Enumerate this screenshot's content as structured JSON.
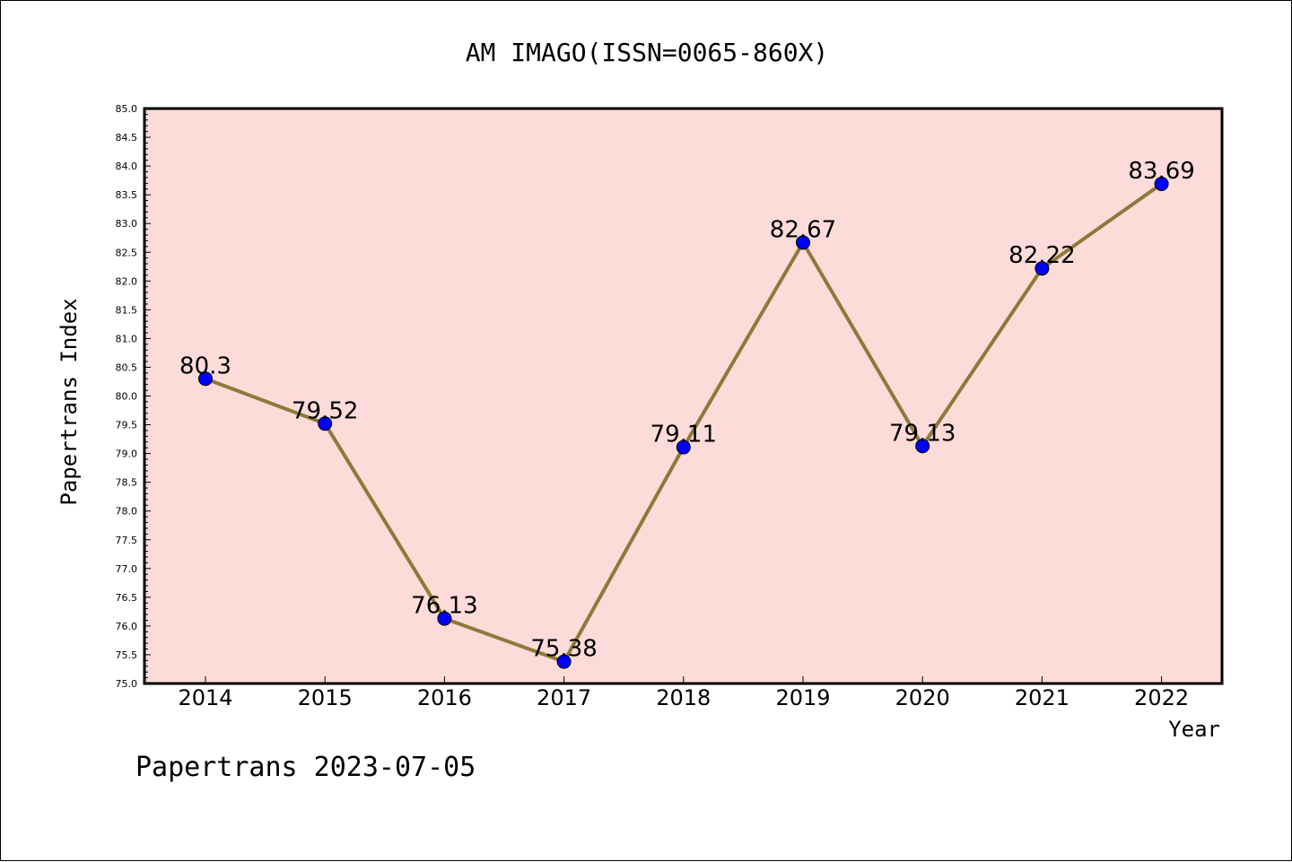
{
  "chart_data": {
    "type": "line",
    "title": "AM IMAGO(ISSN=0065-860X)",
    "xlabel": "Year",
    "ylabel": "Papertrans Index",
    "categories": [
      "2014",
      "2015",
      "2016",
      "2017",
      "2018",
      "2019",
      "2020",
      "2021",
      "2022"
    ],
    "series": [
      {
        "values": [
          80.3,
          79.52,
          76.13,
          75.38,
          79.11,
          82.67,
          79.13,
          82.22,
          83.69
        ],
        "labels": [
          "80.3",
          "79.52",
          "76.13",
          "75.38",
          "79.11",
          "82.67",
          "79.13",
          "82.22",
          "83.69"
        ],
        "line_color": "#8c7a3a",
        "marker_color": "#0000ff"
      }
    ],
    "ylim": [
      75.0,
      85.0
    ],
    "yticks": [
      "75.0",
      "75.5",
      "76.0",
      "76.5",
      "77.0",
      "77.5",
      "78.0",
      "78.5",
      "79.0",
      "79.5",
      "80.0",
      "80.5",
      "81.0",
      "81.5",
      "82.0",
      "82.5",
      "83.0",
      "83.5",
      "84.0",
      "84.5",
      "85.0"
    ],
    "plot_background": "#fddbd8",
    "grid": false,
    "legend": "none"
  },
  "footer": {
    "text": "Papertrans 2023-07-05"
  }
}
